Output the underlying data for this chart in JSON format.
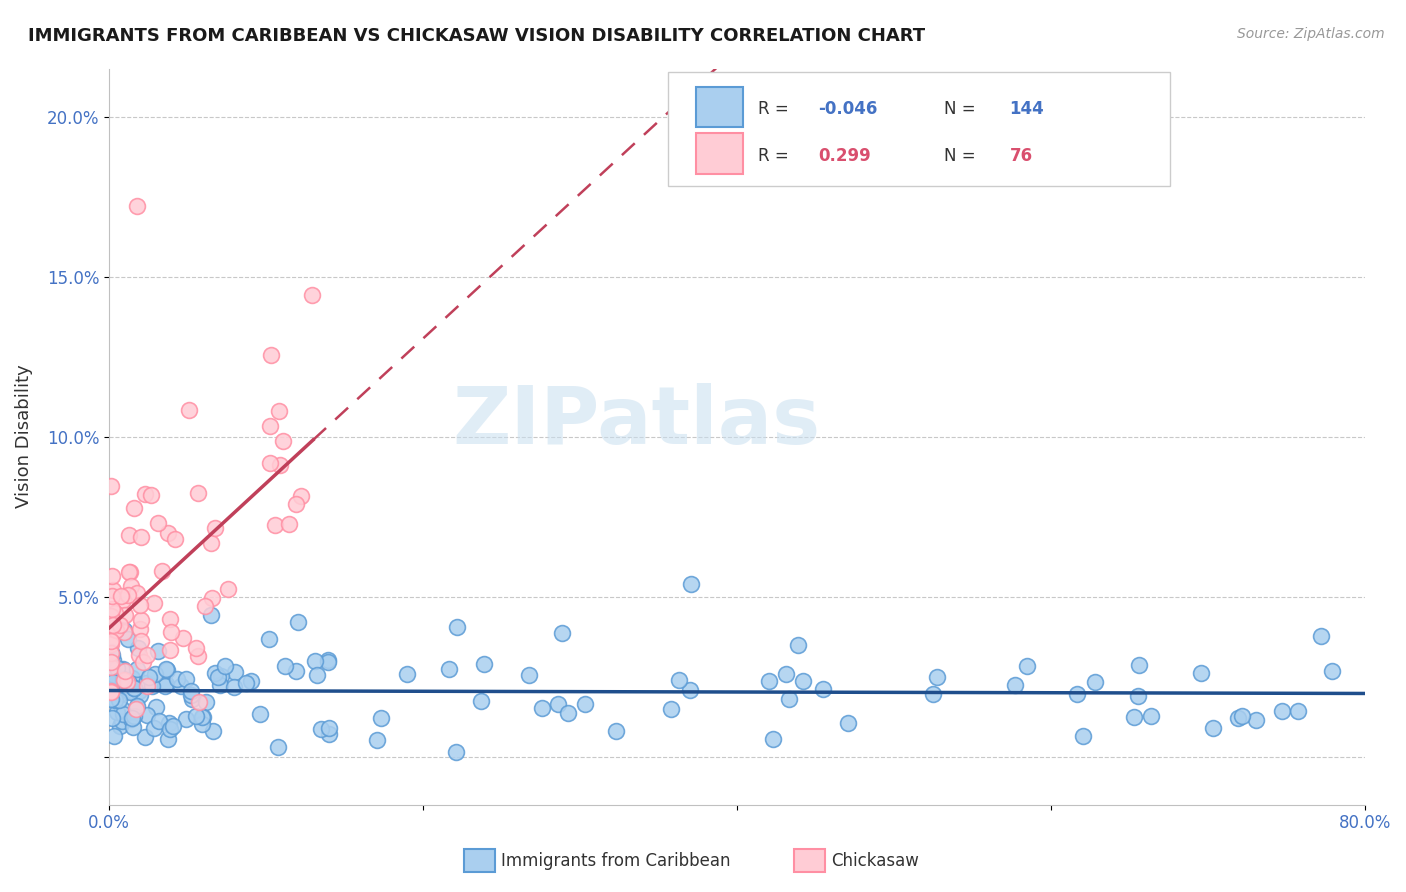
{
  "title": "IMMIGRANTS FROM CARIBBEAN VS CHICKASAW VISION DISABILITY CORRELATION CHART",
  "source": "Source: ZipAtlas.com",
  "ylabel": "Vision Disability",
  "xmin": 0.0,
  "xmax": 0.8,
  "ymin": -0.015,
  "ymax": 0.215,
  "blue_color": "#5b9bd5",
  "pink_color": "#ff8fa3",
  "blue_line_color": "#1f4e8c",
  "pink_line_color": "#c0405a",
  "blue_dot_face": "#aacfef",
  "pink_dot_face": "#ffccd5",
  "watermark": "ZIPatlas"
}
